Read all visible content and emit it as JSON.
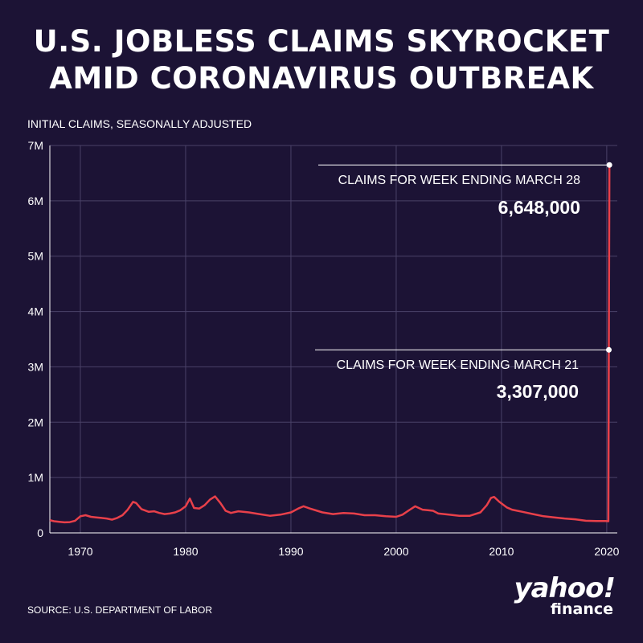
{
  "title_line1": "U.S. JOBLESS CLAIMS SKYROCKET",
  "title_line2": "AMID CORONAVIRUS OUTBREAK",
  "source": "SOURCE:  U.S. DEPARTMENT OF LABOR",
  "logo": {
    "yahoo": "yahoo!",
    "finance": "finance"
  },
  "colors": {
    "background": "#1c1335",
    "line": "#e8404a",
    "grid": "#4a4268",
    "text": "#ffffff"
  },
  "chart_data": {
    "type": "line",
    "title": "U.S. JOBLESS CLAIMS SKYROCKET AMID CORONAVIRUS OUTBREAK",
    "ylabel": "INITIAL CLAIMS, SEASONALLY ADJUSTED",
    "xlabel": "",
    "xlim": [
      1967.1,
      2021.0
    ],
    "ylim": [
      0,
      7000000
    ],
    "x_ticks": [
      1970,
      1980,
      1990,
      2000,
      2010,
      2020
    ],
    "x_tick_labels": [
      "1970",
      "1980",
      "1990",
      "2000",
      "2010",
      "2020"
    ],
    "y_ticks": [
      0,
      1000000,
      2000000,
      3000000,
      4000000,
      5000000,
      6000000,
      7000000
    ],
    "y_tick_labels": [
      "0",
      "1M",
      "2M",
      "3M",
      "4M",
      "5M",
      "6M",
      "7M"
    ],
    "grid": true,
    "series": [
      {
        "name": "Initial claims",
        "x": [
          1967.1,
          1967.5,
          1968.0,
          1968.5,
          1969.0,
          1969.5,
          1970.0,
          1970.5,
          1971.0,
          1971.5,
          1972.0,
          1972.5,
          1973.0,
          1973.5,
          1974.0,
          1974.5,
          1975.0,
          1975.3,
          1975.8,
          1976.5,
          1977.0,
          1977.5,
          1978.0,
          1978.5,
          1979.0,
          1979.5,
          1980.0,
          1980.4,
          1980.8,
          1981.3,
          1981.8,
          1982.3,
          1982.8,
          1983.3,
          1983.8,
          1984.3,
          1985.0,
          1986.0,
          1987.0,
          1988.0,
          1989.0,
          1990.0,
          1990.7,
          1991.2,
          1991.8,
          1992.5,
          1993.0,
          1994.0,
          1995.0,
          1996.0,
          1997.0,
          1998.0,
          1999.0,
          2000.0,
          2000.6,
          2001.3,
          2001.8,
          2002.5,
          2003.0,
          2003.5,
          2004.0,
          2005.0,
          2006.0,
          2007.0,
          2008.0,
          2008.6,
          2009.0,
          2009.3,
          2009.8,
          2010.5,
          2011.0,
          2012.0,
          2013.0,
          2014.0,
          2015.0,
          2016.0,
          2017.0,
          2018.0,
          2019.0,
          2019.9,
          2020.15,
          2020.2,
          2020.25
        ],
        "values": [
          230000,
          210000,
          200000,
          190000,
          195000,
          220000,
          300000,
          320000,
          290000,
          280000,
          270000,
          260000,
          240000,
          270000,
          320000,
          420000,
          560000,
          540000,
          430000,
          380000,
          390000,
          360000,
          340000,
          350000,
          370000,
          410000,
          480000,
          620000,
          450000,
          440000,
          500000,
          600000,
          660000,
          540000,
          400000,
          360000,
          390000,
          370000,
          340000,
          310000,
          330000,
          370000,
          440000,
          480000,
          440000,
          400000,
          370000,
          340000,
          360000,
          350000,
          320000,
          320000,
          300000,
          290000,
          330000,
          420000,
          480000,
          420000,
          410000,
          400000,
          350000,
          330000,
          310000,
          310000,
          370000,
          500000,
          630000,
          650000,
          560000,
          460000,
          420000,
          380000,
          340000,
          300000,
          280000,
          260000,
          245000,
          220000,
          215000,
          215000,
          211000,
          3307000,
          6648000
        ]
      }
    ],
    "annotations": [
      {
        "label": "CLAIMS FOR WEEK ENDING MARCH 28",
        "value_text": "6,648,000",
        "x": 2020.25,
        "y": 6648000
      },
      {
        "label": "CLAIMS FOR WEEK ENDING MARCH 21",
        "value_text": "3,307,000",
        "x": 2020.2,
        "y": 3307000
      }
    ]
  }
}
